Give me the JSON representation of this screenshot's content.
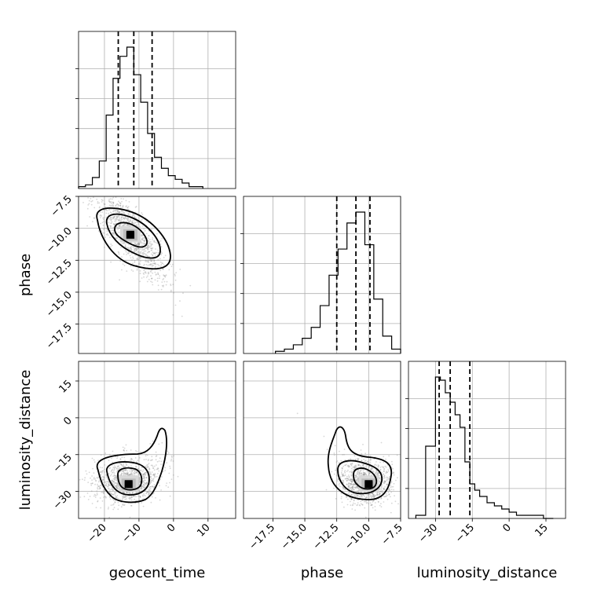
{
  "chart_data": {
    "type": "corner",
    "parameters": [
      "geocent_time",
      "phase",
      "luminosity_distance"
    ],
    "ranges": {
      "geocent_time": [
        -27.5,
        18
      ],
      "phase": [
        -19.8,
        -7.5
      ],
      "luminosity_distance": [
        -41,
        23
      ]
    },
    "ticks": {
      "geocent_time": [
        -20,
        -10,
        0,
        10
      ],
      "phase": [
        -17.5,
        -15.0,
        -12.5,
        -10.0,
        -7.5
      ],
      "luminosity_distance": [
        -30,
        -15,
        0,
        15
      ]
    },
    "tick_labels": {
      "geocent_time": [
        "−20",
        "−10",
        "0",
        "10"
      ],
      "phase": [
        "−17.5",
        "−15.0",
        "−12.5",
        "−10.0",
        "−7.5"
      ],
      "luminosity_distance": [
        "−30",
        "−15",
        "0",
        "15"
      ]
    },
    "marginals": [
      {
        "parameter": "geocent_time",
        "bin_edges": [
          -27.5,
          -25.5,
          -23.5,
          -21.5,
          -19.5,
          -17.5,
          -15.5,
          -13.5,
          -11.5,
          -9.5,
          -7.5,
          -5.5,
          -3.5,
          -1.5,
          0.5,
          2.5,
          4.5,
          6.5,
          8.5
        ],
        "counts": [
          1,
          2,
          6,
          15,
          40,
          60,
          72,
          77,
          62,
          47,
          30,
          17,
          11,
          7,
          5,
          3,
          1,
          1
        ],
        "quantiles": [
          -16,
          -11.5,
          -6.2
        ]
      },
      {
        "parameter": "phase",
        "bin_edges": [
          -17.3,
          -16.6,
          -15.9,
          -15.2,
          -14.5,
          -13.8,
          -13.1,
          -12.4,
          -11.7,
          -11.0,
          -10.3,
          -9.6,
          -8.9,
          -8.2,
          -7.5
        ],
        "counts": [
          1,
          2,
          4,
          7,
          12,
          22,
          36,
          48,
          60,
          65,
          50,
          25,
          8,
          2
        ],
        "quantiles": [
          -12.5,
          -11.0,
          -9.9
        ]
      },
      {
        "parameter": "luminosity_distance",
        "bin_edges": [
          -38,
          -34,
          -30,
          -28,
          -26,
          -24,
          -22,
          -20,
          -18,
          -16,
          -14,
          -12,
          -9,
          -6,
          -3,
          0,
          3,
          6,
          10,
          14,
          18
        ],
        "counts": [
          1,
          23,
          45,
          44,
          40,
          37,
          33,
          29,
          18,
          11,
          9,
          7,
          5,
          4,
          3,
          2,
          1,
          1,
          1,
          0
        ],
        "quantiles": [
          -28.5,
          -24.0,
          -16.0
        ]
      }
    ],
    "joint_2d": [
      {
        "x": "geocent_time",
        "y": "phase",
        "mode": [
          -12.5,
          -10.5
        ],
        "contour_levels": [
          "inner",
          "middle",
          "outer"
        ]
      },
      {
        "x": "geocent_time",
        "y": "luminosity_distance",
        "mode": [
          -13.0,
          -27.0
        ],
        "contour_levels": [
          "inner",
          "middle",
          "outer"
        ]
      },
      {
        "x": "phase",
        "y": "luminosity_distance",
        "mode": [
          -10.0,
          -27.0
        ],
        "contour_levels": [
          "inner",
          "middle",
          "outer"
        ]
      }
    ],
    "title": "",
    "grid": true
  },
  "colors": {
    "scatter": "#8c8c8c",
    "lines": "#000000",
    "grid": "#b0b0b0"
  }
}
